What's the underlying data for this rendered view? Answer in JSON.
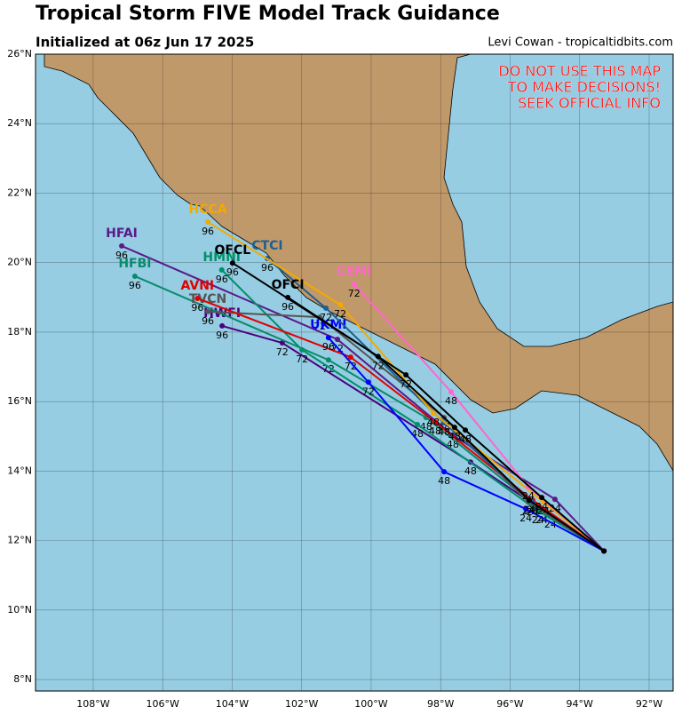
{
  "header": {
    "title": "Tropical Storm FIVE Model Track Guidance",
    "subtitle": "Initialized at 06z Jun 17 2025",
    "credit": "Levi Cowan - tropicaltidbits.com"
  },
  "warning": [
    "DO NOT USE THIS MAP",
    "TO MAKE DECISIONS!",
    "SEEK OFFICIAL INFO"
  ],
  "map": {
    "xlim": [
      -109.66,
      -91.31
    ],
    "ylim": [
      7.67,
      26
    ],
    "xticks": [
      {
        "value": -108,
        "label": "108°W"
      },
      {
        "value": -106,
        "label": "106°W"
      },
      {
        "value": -104,
        "label": "104°W"
      },
      {
        "value": -102,
        "label": "102°W"
      },
      {
        "value": -100,
        "label": "100°W"
      },
      {
        "value": -98,
        "label": "98°W"
      },
      {
        "value": -96,
        "label": "96°W"
      },
      {
        "value": -94,
        "label": "94°W"
      },
      {
        "value": -92,
        "label": "92°W"
      }
    ],
    "yticks": [
      {
        "value": 8,
        "label": "8°N"
      },
      {
        "value": 10,
        "label": "10°N"
      },
      {
        "value": 12,
        "label": "12°N"
      },
      {
        "value": 14,
        "label": "14°N"
      },
      {
        "value": 16,
        "label": "16°N"
      },
      {
        "value": 18,
        "label": "18°N"
      },
      {
        "value": 20,
        "label": "20°N"
      },
      {
        "value": 22,
        "label": "22°N"
      },
      {
        "value": 24,
        "label": "24°N"
      },
      {
        "value": 26,
        "label": "26°N"
      }
    ],
    "grid": true,
    "tracks": [
      {
        "name": "HFAI",
        "color": "#5a1a8a",
        "lon": [
          -93.3,
          -94.71,
          -97.65,
          -100.97,
          -107.18
        ],
        "lat": [
          11.7,
          13.19,
          15.03,
          17.79,
          20.48
        ],
        "hours": [
          null,
          24,
          48,
          72,
          96
        ]
      },
      {
        "name": "HWFI",
        "color": "#4b0082",
        "lon": [
          -93.3,
          -94.84,
          -97.14,
          -102.56,
          -104.29
        ],
        "lat": [
          11.7,
          12.73,
          14.26,
          17.69,
          18.18
        ],
        "hours": [
          null,
          24,
          48,
          72,
          96
        ]
      },
      {
        "name": "HFBI",
        "color": "#0a8a6a",
        "lon": [
          -93.3,
          -95.09,
          -98.42,
          -101.23,
          -106.8
        ],
        "lat": [
          11.7,
          12.86,
          15.54,
          17.2,
          19.61
        ],
        "hours": [
          null,
          24,
          48,
          72,
          96
        ]
      },
      {
        "name": "HMNI",
        "color": "#00906a",
        "lon": [
          -93.3,
          -95.2,
          -98.67,
          -101.99,
          -104.3
        ],
        "lat": [
          11.7,
          12.86,
          15.34,
          17.49,
          19.79
        ],
        "hours": [
          null,
          24,
          48,
          72,
          96
        ]
      },
      {
        "name": "TVCN",
        "color": "#555555",
        "lon": [
          -93.3,
          -95.48,
          -97.9,
          -101.48,
          -104.7
        ],
        "lat": [
          11.7,
          13.11,
          15.54,
          18.43,
          18.59
        ],
        "hours": [
          null,
          24,
          48,
          72,
          96
        ]
      },
      {
        "name": "AVNI",
        "color": "#e00000",
        "lon": [
          -93.3,
          -95.35,
          -98.16,
          -100.59,
          -105.0
        ],
        "lat": [
          11.7,
          13.16,
          15.41,
          17.28,
          18.97
        ],
        "hours": [
          null,
          24,
          48,
          72,
          96
        ]
      },
      {
        "name": "UKMI",
        "color": "#0000ff",
        "lon": [
          -93.3,
          -95.55,
          -97.9,
          -100.08,
          -101.23
        ],
        "lat": [
          11.7,
          12.91,
          13.98,
          16.56,
          17.84
        ],
        "hours": [
          null,
          24,
          48,
          72,
          96
        ]
      },
      {
        "name": "CTCI",
        "color": "#1f5f8f",
        "lon": [
          -93.3,
          -95.35,
          -97.9,
          -101.3,
          -102.99
        ],
        "lat": [
          11.7,
          13.09,
          15.39,
          18.69,
          20.12
        ],
        "hours": [
          null,
          24,
          48,
          72,
          96
        ]
      },
      {
        "name": "HCCA",
        "color": "#f5a800",
        "lon": [
          -93.3,
          -95.04,
          -98.21,
          -100.89,
          -104.7
        ],
        "lat": [
          11.7,
          13.11,
          15.67,
          18.79,
          21.17
        ],
        "hours": [
          null,
          24,
          48,
          72,
          96
        ]
      },
      {
        "name": "CEMI",
        "color": "#ff66cc",
        "lon": [
          -93.3,
          -95.48,
          -97.7,
          -100.49
        ],
        "lat": [
          11.7,
          13.55,
          16.28,
          19.38
        ],
        "hours": [
          null,
          24,
          48,
          72
        ]
      },
      {
        "name": "OFCI",
        "color": "#000000",
        "lon": [
          -93.3,
          -95.09,
          -97.29,
          -99.0,
          -102.4
        ],
        "lat": [
          11.7,
          13.24,
          15.18,
          16.77,
          19.0
        ],
        "hours": [
          null,
          24,
          48,
          72,
          96
        ]
      },
      {
        "name": "OFCL",
        "color": "#000000",
        "lon": [
          -93.3,
          -95.45,
          -97.6,
          -99.8,
          -103.99
        ],
        "lat": [
          11.7,
          13.16,
          15.26,
          17.3,
          19.99
        ],
        "hours": [
          null,
          24,
          48,
          72,
          96
        ]
      }
    ]
  }
}
